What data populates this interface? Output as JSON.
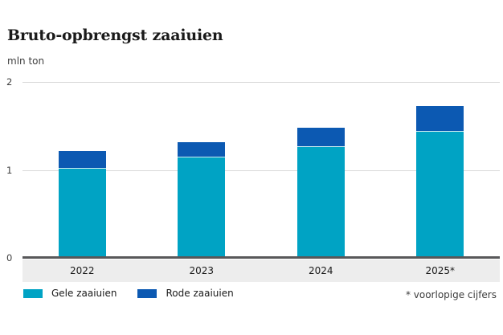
{
  "header": {
    "title": "Bruto-opbrengst zaaiuien",
    "unit_label": "mln ton"
  },
  "footnote": "* voorlopige cijfers",
  "colors": {
    "gele": "#00a3c4",
    "rode": "#0c59b2",
    "axis_band": "#ededed",
    "baseline": "#58585a",
    "gridline": "#d9d9d9",
    "title_text": "#1a1a1a"
  },
  "chart_data": {
    "type": "bar",
    "stacked": true,
    "title": "Bruto-opbrengst zaaiuien",
    "ylabel": "mln ton",
    "xlabel": "",
    "categories": [
      "2022",
      "2023",
      "2024",
      "2025*"
    ],
    "series": [
      {
        "name": "Gele zaaiuien",
        "color": "#00a3c4",
        "values": [
          1.01,
          1.14,
          1.26,
          1.43
        ]
      },
      {
        "name": "Rode zaaiuien",
        "color": "#0c59b2",
        "values": [
          0.2,
          0.17,
          0.21,
          0.29
        ]
      }
    ],
    "totals": [
      1.21,
      1.31,
      1.47,
      1.72
    ],
    "ylim": [
      0,
      2
    ],
    "yticks": [
      0,
      1,
      2
    ],
    "grid": true,
    "legend_position": "bottom",
    "footnote": "* voorlopige cijfers"
  }
}
